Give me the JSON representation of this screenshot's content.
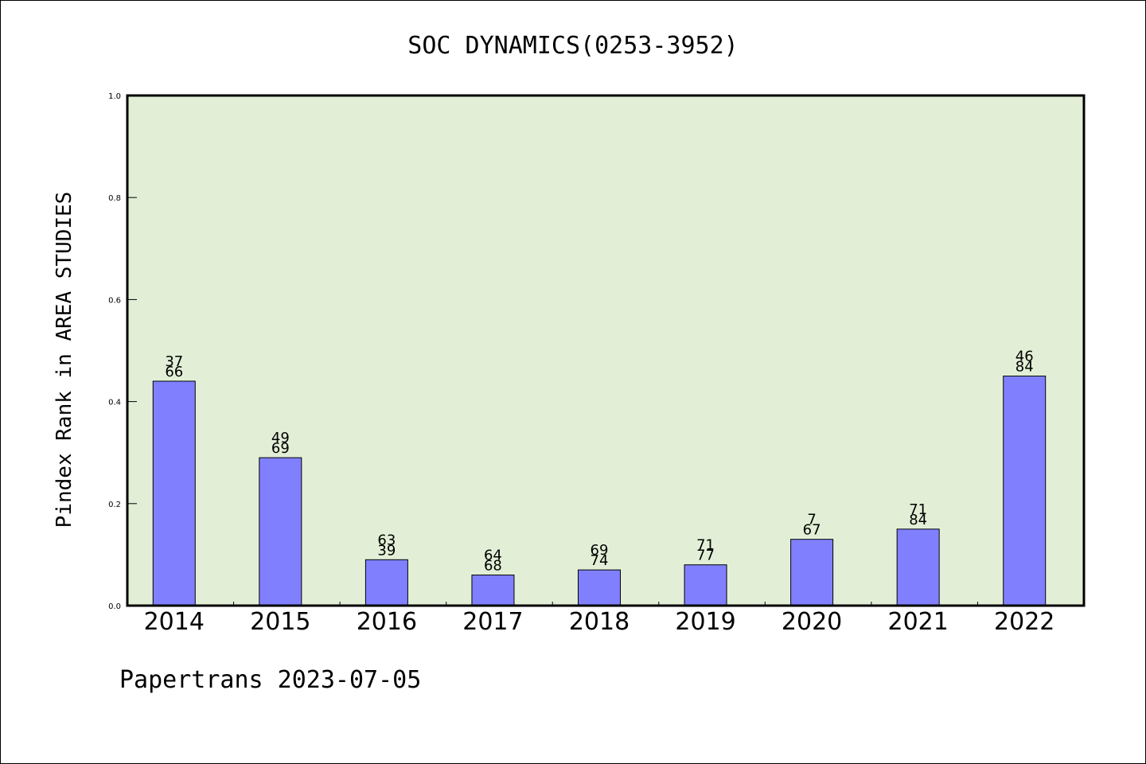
{
  "footer": "Papertrans 2023-07-05",
  "colors": {
    "plot_background": "#e2efd6",
    "bar_fill": "#8080ff",
    "bar_stroke": "#000000"
  },
  "chart_data": {
    "type": "bar",
    "title": "SOC DYNAMICS(0253-3952)",
    "xlabel": "",
    "ylabel": "Pindex Rank in AREA STUDIES",
    "ylim": [
      0,
      1.0
    ],
    "yticks": [
      "0.0",
      "0.2",
      "0.4",
      "0.6",
      "0.8",
      "1.0"
    ],
    "categories": [
      "2014",
      "2015",
      "2016",
      "2017",
      "2018",
      "2019",
      "2020",
      "2021",
      "2022"
    ],
    "values": [
      0.44,
      0.29,
      0.09,
      0.06,
      0.07,
      0.08,
      0.13,
      0.15,
      0.45
    ],
    "label_top": [
      "37",
      "49",
      "63",
      "64",
      "69",
      "71",
      "7",
      "71",
      "46"
    ],
    "label_bottom": [
      "66",
      "69",
      "39",
      "68",
      "74",
      "77",
      "67",
      "84",
      "84"
    ],
    "grid": false,
    "legend": "none"
  }
}
